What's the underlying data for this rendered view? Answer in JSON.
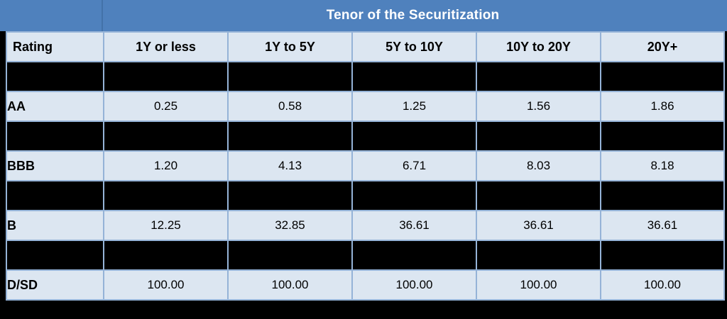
{
  "title_band": {
    "title": "Tenor of the Securitization"
  },
  "table": {
    "columns": [
      "Rating",
      "1Y or less",
      "1Y to 5Y",
      "5Y to 10Y",
      "10Y to 20Y",
      "20Y+"
    ],
    "rows": [
      {
        "rating": "AA",
        "values": [
          "0.25",
          "0.58",
          "1.25",
          "1.56",
          "1.86"
        ]
      },
      {
        "rating": "BBB",
        "values": [
          "1.20",
          "4.13",
          "6.71",
          "8.03",
          "8.18"
        ]
      },
      {
        "rating": "B",
        "values": [
          "12.25",
          "32.85",
          "36.61",
          "36.61",
          "36.61"
        ]
      },
      {
        "rating": "D/SD",
        "values": [
          "100.00",
          "100.00",
          "100.00",
          "100.00",
          "100.00"
        ]
      }
    ],
    "redacted_row_before_each_data_row": true,
    "redacted_row_count": 4
  },
  "colors": {
    "title_band_blue": "#4F81BD",
    "cell_light_blue": "#DCE6F1",
    "grid_line_blue": "#95B3D7",
    "redacted_black": "#000000",
    "title_text": "#FFFFFF",
    "cell_text": "#000000"
  }
}
